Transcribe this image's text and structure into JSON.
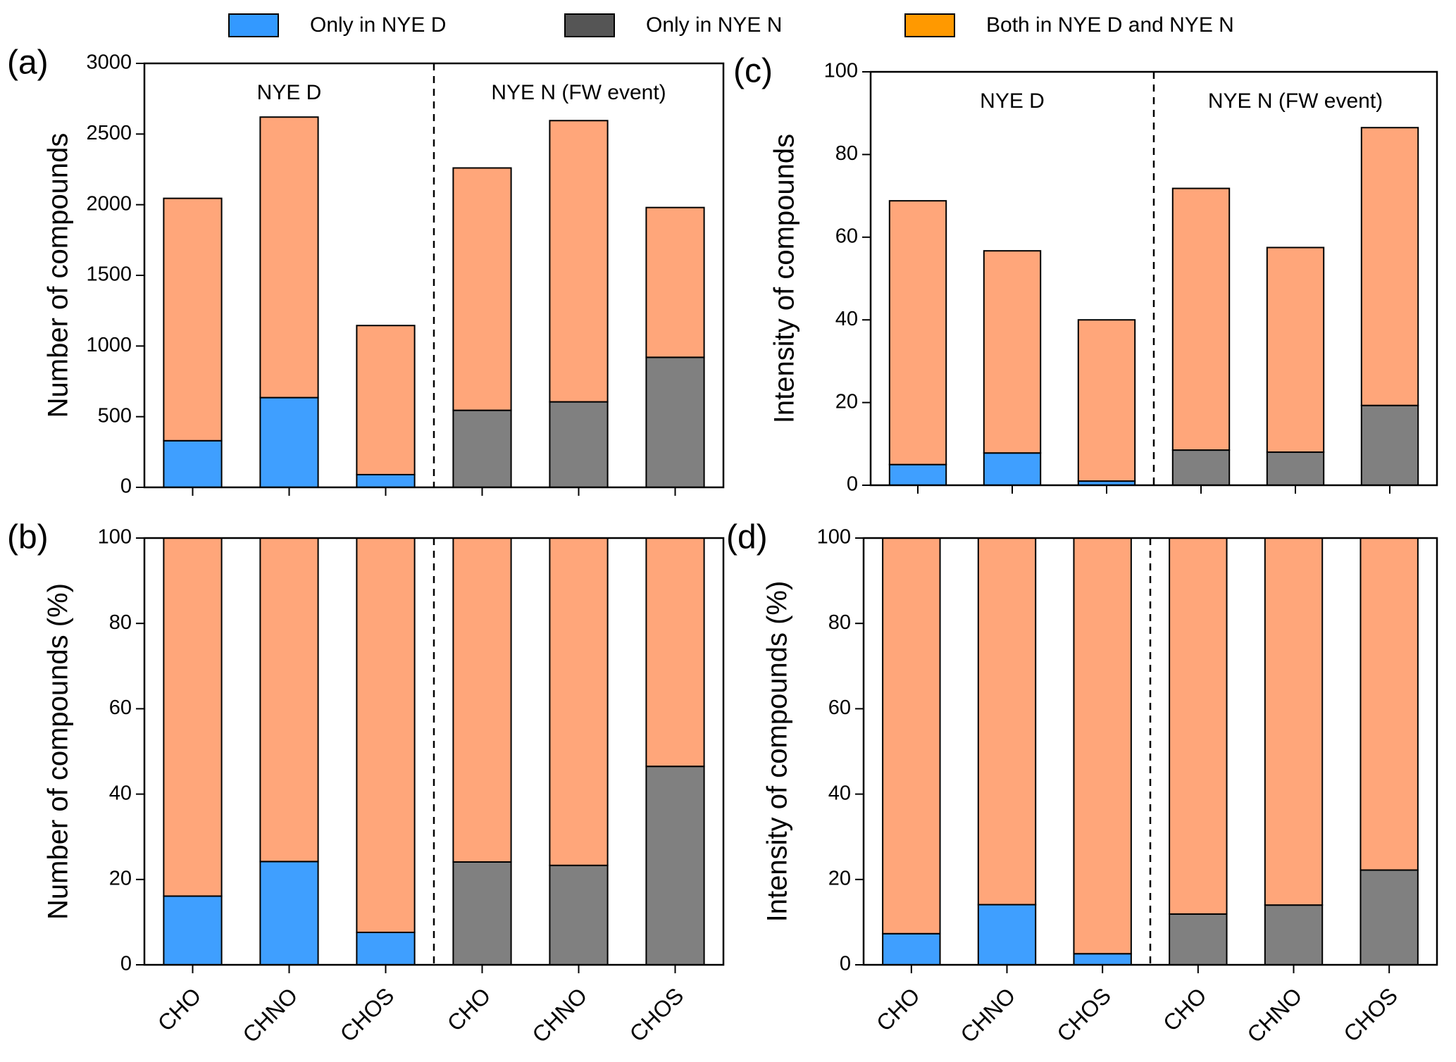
{
  "legend": [
    {
      "name": "Only in NYE D",
      "color": "#3399ff"
    },
    {
      "name": "Only in NYE N",
      "color": "#555555"
    },
    {
      "name": "Both in NYE D and NYE N",
      "color": "#ff9900"
    }
  ],
  "chart_data": [
    {
      "type": "bar",
      "stacked": true,
      "panel_label": "(a)",
      "ylabel": "Number of compounds",
      "groups": [
        "NYE D",
        "NYE N (FW event)"
      ],
      "ylim": [
        0,
        3000
      ],
      "yticks": [
        0,
        500,
        1000,
        1500,
        2000,
        2500,
        3000
      ],
      "series": [
        {
          "color": "#3f9fff",
          "values": [
            330,
            635,
            90,
            null,
            null,
            null
          ]
        },
        {
          "color": "#808080",
          "values": [
            null,
            null,
            null,
            545,
            605,
            920
          ]
        },
        {
          "color": "#ffa67a",
          "values": [
            1715,
            1985,
            1055,
            1715,
            1990,
            1060
          ]
        }
      ]
    },
    {
      "type": "bar",
      "stacked": true,
      "panel_label": "(b)",
      "ylabel": "Number of compounds (%)",
      "categories": [
        "CHO",
        "CHNO",
        "CHOS",
        "CHO",
        "CHNO",
        "CHOS"
      ],
      "ylim": [
        0,
        100
      ],
      "yticks": [
        0,
        20,
        40,
        60,
        80,
        100
      ],
      "series": [
        {
          "color": "#3f9fff",
          "values": [
            16.1,
            24.2,
            7.6,
            null,
            null,
            null
          ]
        },
        {
          "color": "#808080",
          "values": [
            null,
            null,
            null,
            24.1,
            23.3,
            46.5
          ]
        },
        {
          "color": "#ffa67a",
          "values": [
            83.9,
            75.8,
            92.4,
            75.9,
            76.7,
            53.5
          ]
        }
      ]
    },
    {
      "type": "bar",
      "stacked": true,
      "panel_label": "(c)",
      "ylabel": "Intensity of compounds",
      "groups": [
        "NYE D",
        "NYE N (FW event)"
      ],
      "ylim": [
        0,
        100
      ],
      "yticks": [
        0,
        20,
        40,
        60,
        80,
        100
      ],
      "series": [
        {
          "color": "#3f9fff",
          "values": [
            5.0,
            7.8,
            1.0,
            null,
            null,
            null
          ]
        },
        {
          "color": "#808080",
          "values": [
            null,
            null,
            null,
            8.5,
            8.0,
            19.3
          ]
        },
        {
          "color": "#ffa67a",
          "values": [
            63.8,
            48.9,
            39.0,
            63.3,
            49.5,
            67.2
          ]
        }
      ]
    },
    {
      "type": "bar",
      "stacked": true,
      "panel_label": "(d)",
      "ylabel": "Intensity of compounds (%)",
      "categories": [
        "CHO",
        "CHNO",
        "CHOS",
        "CHO",
        "CHNO",
        "CHOS"
      ],
      "ylim": [
        0,
        100
      ],
      "yticks": [
        0,
        20,
        40,
        60,
        80,
        100
      ],
      "series": [
        {
          "color": "#3f9fff",
          "values": [
            7.3,
            14.1,
            2.6,
            null,
            null,
            null
          ]
        },
        {
          "color": "#808080",
          "values": [
            null,
            null,
            null,
            11.9,
            14.0,
            22.2
          ]
        },
        {
          "color": "#ffa67a",
          "values": [
            92.7,
            85.9,
            97.4,
            88.1,
            86.0,
            77.8
          ]
        }
      ]
    }
  ]
}
